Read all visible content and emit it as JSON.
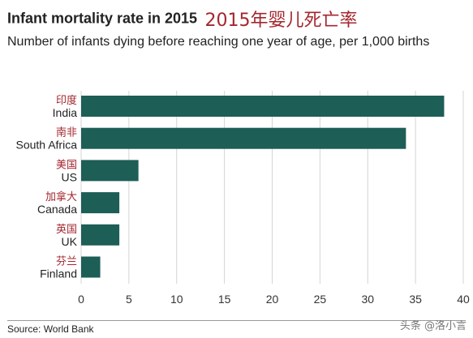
{
  "chart_data": {
    "type": "bar",
    "orientation": "horizontal",
    "title": "Infant mortality rate in 2015",
    "title_cn": "2015年婴儿死亡率",
    "subtitle": "Number of infants dying before reaching one year of age, per 1,000 births",
    "categories": [
      "India",
      "South Africa",
      "US",
      "Canada",
      "UK",
      "Finland"
    ],
    "categories_cn": [
      "印度",
      "南非",
      "美国",
      "加拿大",
      "英国",
      "芬兰"
    ],
    "values": [
      38,
      34,
      6,
      4,
      4,
      2
    ],
    "xlim": [
      0,
      40
    ],
    "xticks": [
      0,
      5,
      10,
      15,
      20,
      25,
      30,
      35,
      40
    ],
    "grid": true,
    "colors": {
      "bar": "#1d5e56",
      "cn_label": "#a3272e",
      "grid": "#d4d4d4"
    }
  },
  "source": "Source: World Bank",
  "watermark": "头条 @洛小言"
}
